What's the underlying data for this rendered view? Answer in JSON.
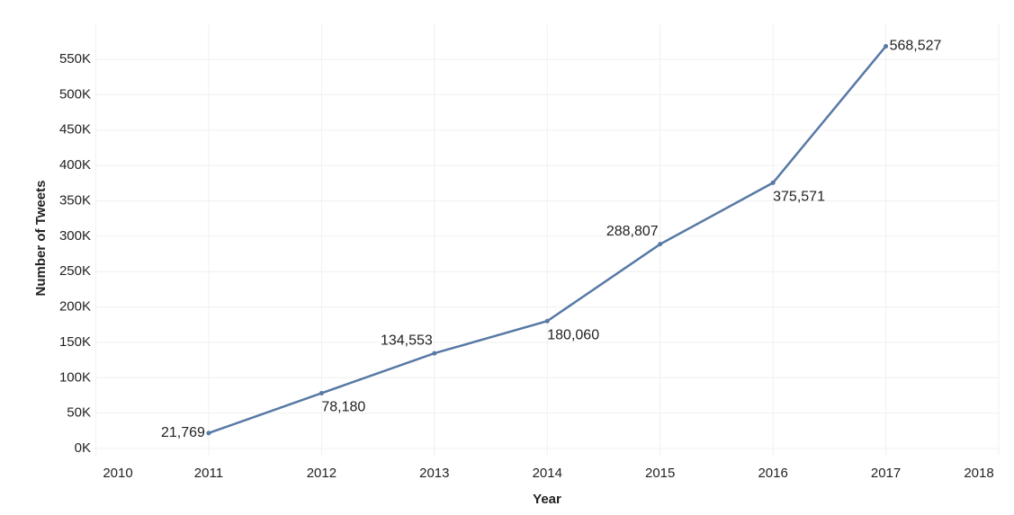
{
  "chart_data": {
    "type": "line",
    "x_label": "Year",
    "y_label": "Number of Tweets",
    "x": [
      2011,
      2012,
      2013,
      2014,
      2015,
      2016,
      2017
    ],
    "series": [
      {
        "name": "Number of Tweets",
        "color": "#5779a5",
        "values": [
          21769,
          78180,
          134553,
          180060,
          288807,
          375571,
          568527
        ],
        "value_labels": [
          "21,769",
          "78,180",
          "134,553",
          "180,060",
          "288,807",
          "375,571",
          "568,527"
        ]
      }
    ],
    "xlim": [
      2010,
      2018
    ],
    "xticks": [
      2010,
      2011,
      2012,
      2013,
      2014,
      2015,
      2016,
      2017,
      2018
    ],
    "ylim": [
      0,
      600000
    ],
    "yticks": [
      {
        "value": 0,
        "label": "0K"
      },
      {
        "value": 50000,
        "label": "50K"
      },
      {
        "value": 100000,
        "label": "100K"
      },
      {
        "value": 150000,
        "label": "150K"
      },
      {
        "value": 200000,
        "label": "200K"
      },
      {
        "value": 250000,
        "label": "250K"
      },
      {
        "value": 300000,
        "label": "300K"
      },
      {
        "value": 350000,
        "label": "350K"
      },
      {
        "value": 400000,
        "label": "400K"
      },
      {
        "value": 450000,
        "label": "450K"
      },
      {
        "value": 500000,
        "label": "500K"
      },
      {
        "value": 550000,
        "label": "550K"
      }
    ],
    "grid": true
  }
}
